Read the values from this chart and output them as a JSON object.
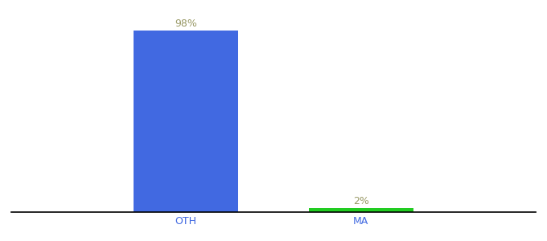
{
  "categories": [
    "OTH",
    "MA"
  ],
  "values": [
    98,
    2
  ],
  "bar_colors": [
    "#4169e1",
    "#22cc22"
  ],
  "value_labels": [
    "98%",
    "2%"
  ],
  "label_color": "#999966",
  "background_color": "#ffffff",
  "ylim": [
    0,
    108
  ],
  "bar_width": 0.6,
  "label_fontsize": 9,
  "tick_fontsize": 9,
  "x_positions": [
    1,
    2
  ],
  "xlim": [
    0,
    3
  ]
}
